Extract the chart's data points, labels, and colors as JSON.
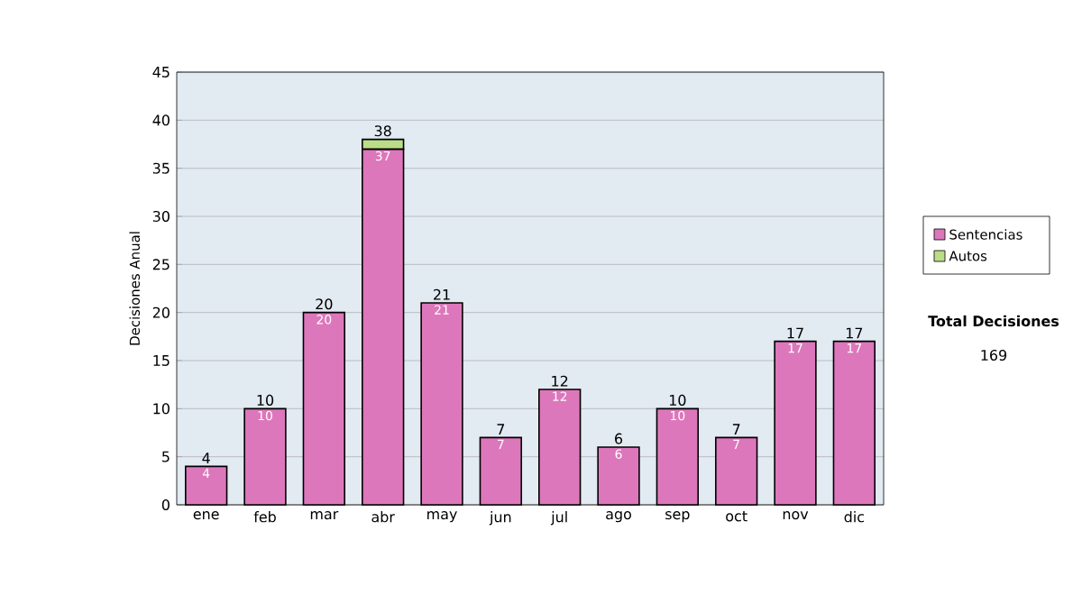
{
  "chart_data": {
    "type": "bar",
    "stacked": true,
    "ylabel": "Decisiones Anual",
    "categories": [
      "ene",
      "feb",
      "mar",
      "abr",
      "may",
      "jun",
      "jul",
      "ago",
      "sep",
      "oct",
      "nov",
      "dic"
    ],
    "series": [
      {
        "name": "Sentencias",
        "color": "#dd77bb",
        "values": [
          4,
          10,
          20,
          37,
          21,
          7,
          12,
          6,
          10,
          7,
          17,
          17
        ],
        "value_labels": [
          "4",
          "10",
          "20",
          "37",
          "21",
          "7",
          "12",
          "6",
          "10",
          "7",
          "17",
          "17"
        ]
      },
      {
        "name": "Autos",
        "color": "#bbdd88",
        "values": [
          null,
          null,
          null,
          1,
          null,
          null,
          null,
          null,
          null,
          null,
          null,
          null
        ]
      }
    ],
    "totals": [
      "4",
      "10",
      "20",
      "38",
      "21",
      "7",
      "12",
      "6",
      "10",
      "7",
      "17",
      "17"
    ],
    "ylim": [
      0,
      45
    ],
    "yticks": [
      0,
      5,
      10,
      15,
      20,
      25,
      30,
      35,
      40,
      45
    ],
    "grid": "y",
    "legend": "right",
    "annotations": [
      "Total Decisiones",
      "169"
    ]
  }
}
